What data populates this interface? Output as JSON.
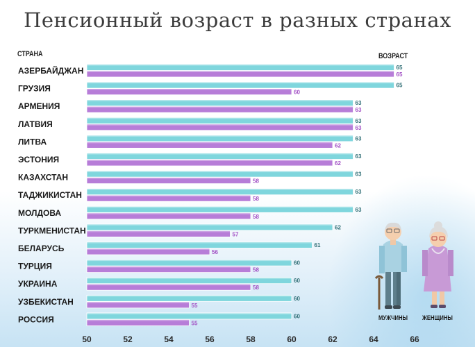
{
  "title": "Пенсионный возраст в разных странах",
  "legend": {
    "men": "МУЖЧИНЫ",
    "women": "ЖЕНЩИНЫ"
  },
  "colors": {
    "men": "#7fd6dd",
    "women": "#b77dd8",
    "men_label": "#2f6e75",
    "women_label": "#a14fc4",
    "title": "#3b3b3b"
  },
  "chart_data": {
    "type": "bar",
    "orientation": "horizontal",
    "title": "Пенсионный возраст в разных странах",
    "ylabel": "СТРАНА",
    "xlabel": "ВОЗРАСТ",
    "xlim": [
      50,
      66
    ],
    "xticks": [
      50,
      52,
      54,
      56,
      58,
      60,
      62,
      64,
      66
    ],
    "grid": false,
    "legend": "bottom-right",
    "categories": [
      "АЗЕРБАЙДЖАН",
      "ГРУЗИЯ",
      "АРМЕНИЯ",
      "ЛАТВИЯ",
      "ЛИТВА",
      "ЭСТОНИЯ",
      "КАЗАХСТАН",
      "ТАДЖИКИСТАН",
      "МОЛДОВА",
      "ТУРКМЕНИСТАН",
      "БЕЛАРУСЬ",
      "ТУРЦИЯ",
      "УКРАИНА",
      "УЗБЕКИСТАН",
      "РОССИЯ"
    ],
    "series": [
      {
        "name": "МУЖЧИНЫ",
        "values": [
          65,
          65,
          63,
          63,
          63,
          63,
          63,
          63,
          63,
          62,
          61,
          60,
          60,
          60,
          60
        ]
      },
      {
        "name": "ЖЕНЩИНЫ",
        "values": [
          65,
          60,
          63,
          63,
          62,
          62,
          58,
          58,
          58,
          57,
          56,
          58,
          58,
          55,
          55
        ]
      }
    ]
  }
}
